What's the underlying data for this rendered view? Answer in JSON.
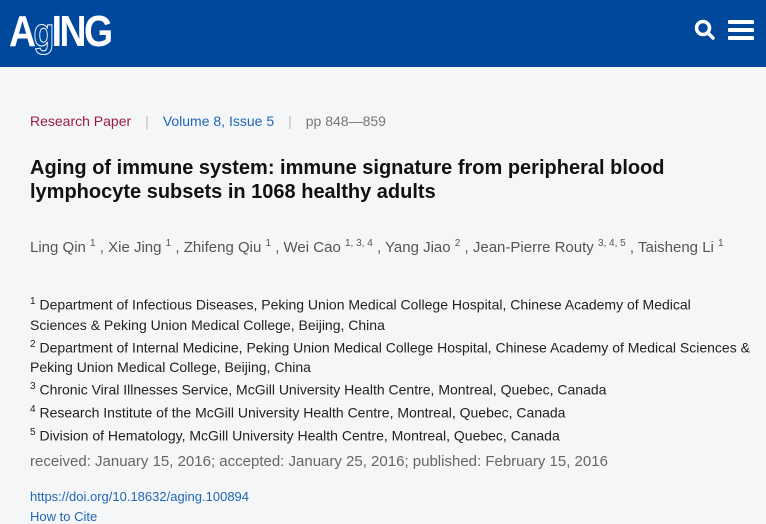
{
  "header": {
    "logo": "AGING",
    "colors": {
      "brand": "#00489b"
    },
    "icons": [
      "search-icon",
      "menu-icon"
    ]
  },
  "meta": {
    "type": "Research Paper",
    "volume": "Volume 8, Issue 5",
    "pages": "pp 848—859"
  },
  "title": "Aging of immune system: immune signature from peripheral blood lymphocyte subsets in 1068 healthy adults",
  "authors": [
    {
      "name": "Ling Qin",
      "aff": "1"
    },
    {
      "name": "Xie Jing",
      "aff": "1"
    },
    {
      "name": "Zhifeng Qiu",
      "aff": "1"
    },
    {
      "name": "Wei Cao",
      "aff": "1, 3, 4"
    },
    {
      "name": "Yang Jiao",
      "aff": "2"
    },
    {
      "name": "Jean-Pierre Routy",
      "aff": "3, 4, 5"
    },
    {
      "name": "Taisheng Li",
      "aff": "1"
    }
  ],
  "affiliations": [
    {
      "num": "1",
      "text": "Department of Infectious Diseases, Peking Union Medical College Hospital, Chinese Academy of Medical Sciences & Peking Union Medical College, Beijing, China"
    },
    {
      "num": "2",
      "text": "Department of Internal Medicine, Peking Union Medical College Hospital, Chinese Academy of Medical Sciences & Peking Union Medical College, Beijing, China"
    },
    {
      "num": "3",
      "text": "Chronic Viral Illnesses Service, McGill University Health Centre, Montreal, Quebec, Canada"
    },
    {
      "num": "4",
      "text": "Research Institute of the McGill University Health Centre, Montreal, Quebec, Canada"
    },
    {
      "num": "5",
      "text": "Division of Hematology, McGill University Health Centre, Montreal, Quebec, Canada"
    }
  ],
  "dates": {
    "received": "received: January 15, 2016",
    "accepted": "accepted: January 25, 2016",
    "published": "published: February 15, 2016"
  },
  "doi": "https://doi.org/10.18632/aging.100894",
  "cite": "How to Cite"
}
